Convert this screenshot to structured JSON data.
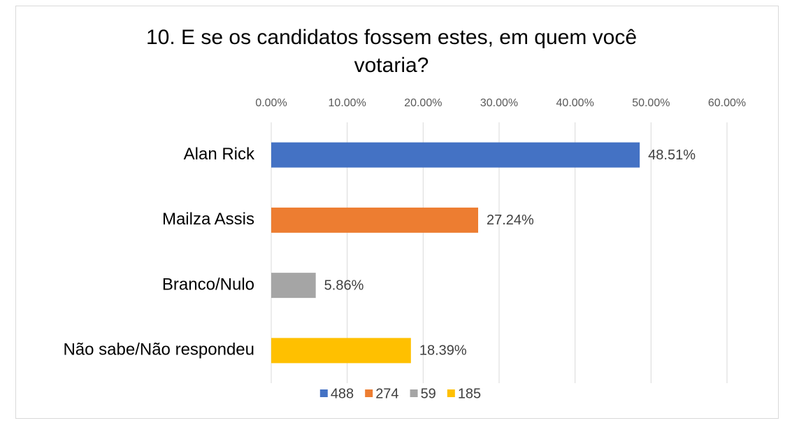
{
  "chart_data": {
    "type": "bar",
    "orientation": "horizontal",
    "title": "10. E se os candidatos fossem estes, em quem você votaria?",
    "categories": [
      "Alan Rick",
      "Mailza Assis",
      "Branco/Nulo",
      "Não sabe/Não respondeu"
    ],
    "series": [
      {
        "name": "488",
        "color": "#4472c4",
        "values": [
          48.51,
          null,
          null,
          null
        ],
        "value_labels": [
          "48.51%",
          null,
          null,
          null
        ]
      },
      {
        "name": "274",
        "color": "#ed7d31",
        "values": [
          null,
          27.24,
          null,
          null
        ],
        "value_labels": [
          null,
          "27.24%",
          null,
          null
        ]
      },
      {
        "name": "59",
        "color": "#a5a5a5",
        "values": [
          null,
          null,
          5.86,
          null
        ],
        "value_labels": [
          null,
          null,
          "5.86%",
          null
        ]
      },
      {
        "name": "185",
        "color": "#ffc000",
        "values": [
          null,
          null,
          null,
          18.39
        ],
        "value_labels": [
          null,
          null,
          null,
          "18.39%"
        ]
      }
    ],
    "xlim": [
      0,
      60
    ],
    "xticks": [
      {
        "value": 0,
        "label": "0.00%"
      },
      {
        "value": 10,
        "label": "10.00%"
      },
      {
        "value": 20,
        "label": "20.00%"
      },
      {
        "value": 30,
        "label": "30.00%"
      },
      {
        "value": 40,
        "label": "40.00%"
      },
      {
        "value": 50,
        "label": "50.00%"
      },
      {
        "value": 60,
        "label": "60.00%"
      }
    ],
    "grid": true,
    "legend": "bottom"
  }
}
